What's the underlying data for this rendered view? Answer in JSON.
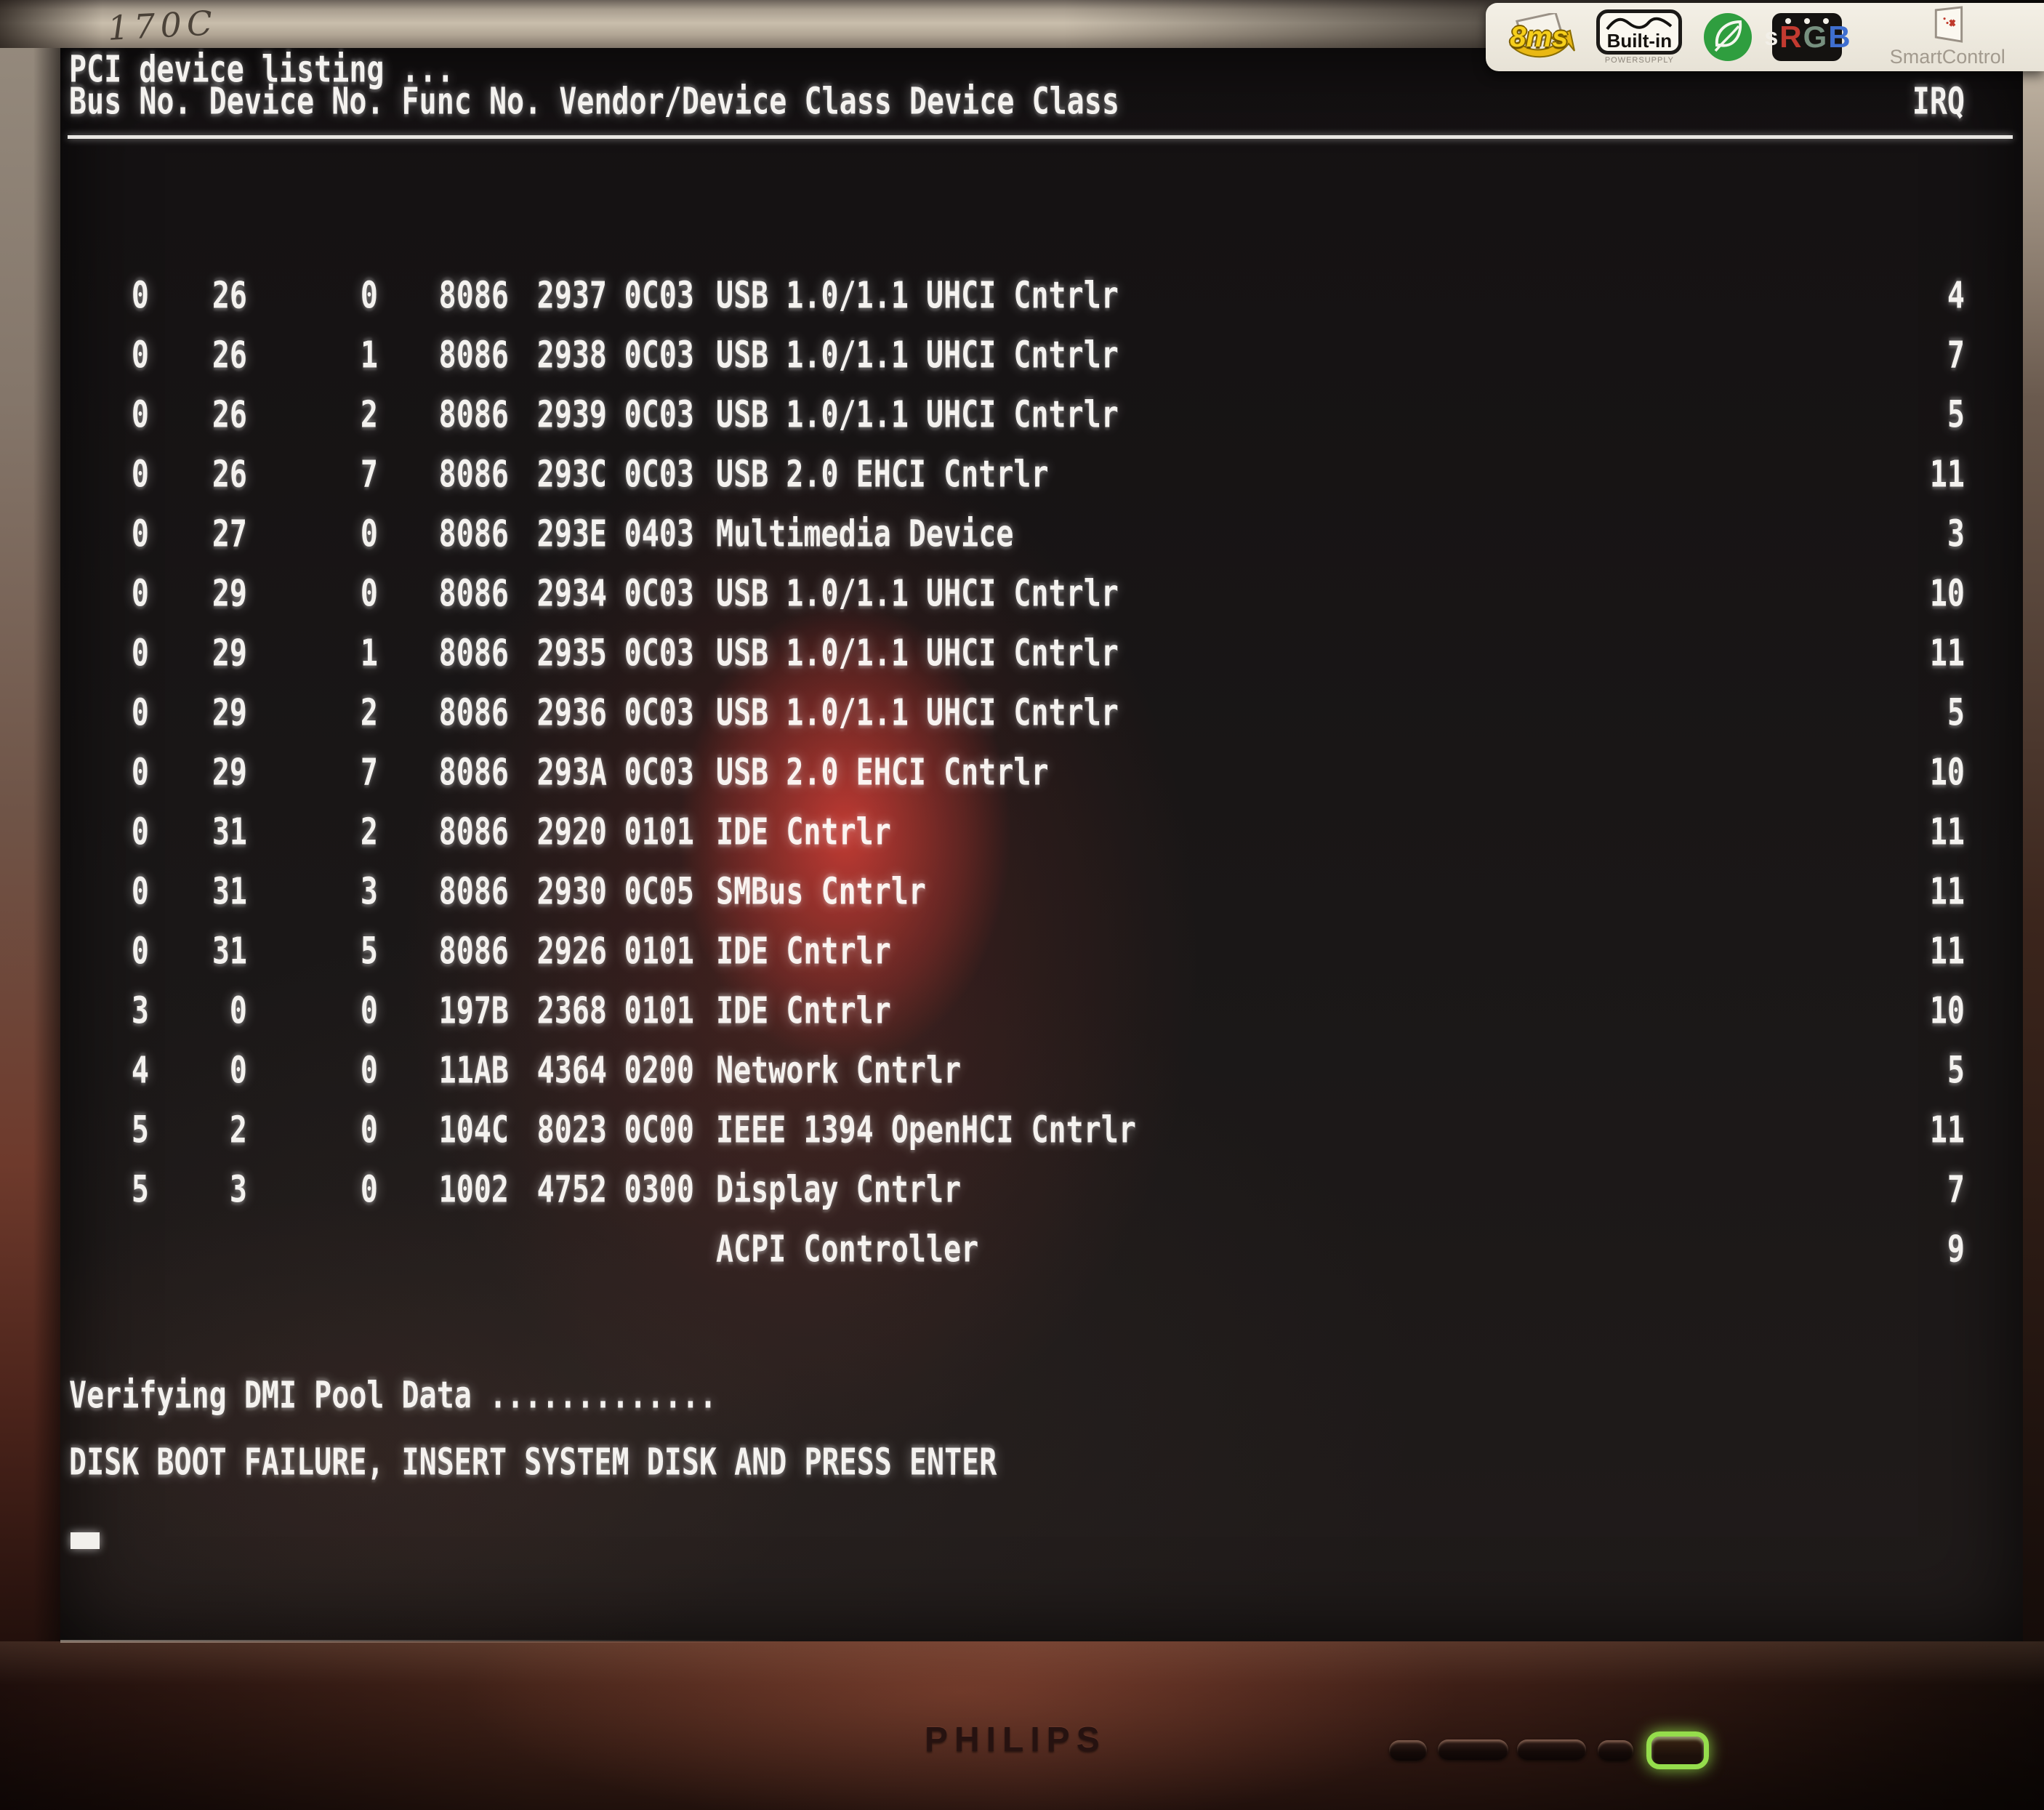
{
  "monitor": {
    "model_label": "170C",
    "brand_logo": "PHILIPS",
    "power_led_color": "#95dd4c",
    "sticker_badges": {
      "response_time": "8ms",
      "builtin_label": "Built-in",
      "builtin_sub": "POWERSUPPLY",
      "srgb_letters": [
        "s",
        "R",
        "G",
        "B"
      ],
      "smartcontrol": "SmartControl"
    }
  },
  "screen": {
    "title": "PCI device listing ...",
    "header_left": "Bus No. Device No. Func No. Vendor/Device Class Device Class",
    "header_irq": "IRQ",
    "text_color": "#f4f2ef",
    "glow_color": "#c22f23",
    "row_fields": [
      "bus",
      "device",
      "func",
      "vendor",
      "device_id",
      "class_code",
      "name",
      "irq"
    ],
    "rows": [
      {
        "bus": "0",
        "device": "26",
        "func": "0",
        "vendor": "8086",
        "device_id": "2937",
        "class_code": "0C03",
        "name": "USB 1.0/1.1 UHCI Cntrlr",
        "irq": "4"
      },
      {
        "bus": "0",
        "device": "26",
        "func": "1",
        "vendor": "8086",
        "device_id": "2938",
        "class_code": "0C03",
        "name": "USB 1.0/1.1 UHCI Cntrlr",
        "irq": "7"
      },
      {
        "bus": "0",
        "device": "26",
        "func": "2",
        "vendor": "8086",
        "device_id": "2939",
        "class_code": "0C03",
        "name": "USB 1.0/1.1 UHCI Cntrlr",
        "irq": "5"
      },
      {
        "bus": "0",
        "device": "26",
        "func": "7",
        "vendor": "8086",
        "device_id": "293C",
        "class_code": "0C03",
        "name": "USB 2.0 EHCI Cntrlr",
        "irq": "11"
      },
      {
        "bus": "0",
        "device": "27",
        "func": "0",
        "vendor": "8086",
        "device_id": "293E",
        "class_code": "0403",
        "name": "Multimedia Device",
        "irq": "3"
      },
      {
        "bus": "0",
        "device": "29",
        "func": "0",
        "vendor": "8086",
        "device_id": "2934",
        "class_code": "0C03",
        "name": "USB 1.0/1.1 UHCI Cntrlr",
        "irq": "10"
      },
      {
        "bus": "0",
        "device": "29",
        "func": "1",
        "vendor": "8086",
        "device_id": "2935",
        "class_code": "0C03",
        "name": "USB 1.0/1.1 UHCI Cntrlr",
        "irq": "11"
      },
      {
        "bus": "0",
        "device": "29",
        "func": "2",
        "vendor": "8086",
        "device_id": "2936",
        "class_code": "0C03",
        "name": "USB 1.0/1.1 UHCI Cntrlr",
        "irq": "5"
      },
      {
        "bus": "0",
        "device": "29",
        "func": "7",
        "vendor": "8086",
        "device_id": "293A",
        "class_code": "0C03",
        "name": "USB 2.0 EHCI Cntrlr",
        "irq": "10"
      },
      {
        "bus": "0",
        "device": "31",
        "func": "2",
        "vendor": "8086",
        "device_id": "2920",
        "class_code": "0101",
        "name": "IDE Cntrlr",
        "irq": "11"
      },
      {
        "bus": "0",
        "device": "31",
        "func": "3",
        "vendor": "8086",
        "device_id": "2930",
        "class_code": "0C05",
        "name": "SMBus Cntrlr",
        "irq": "11"
      },
      {
        "bus": "0",
        "device": "31",
        "func": "5",
        "vendor": "8086",
        "device_id": "2926",
        "class_code": "0101",
        "name": "IDE Cntrlr",
        "irq": "11"
      },
      {
        "bus": "3",
        "device": "0",
        "func": "0",
        "vendor": "197B",
        "device_id": "2368",
        "class_code": "0101",
        "name": "IDE Cntrlr",
        "irq": "10"
      },
      {
        "bus": "4",
        "device": "0",
        "func": "0",
        "vendor": "11AB",
        "device_id": "4364",
        "class_code": "0200",
        "name": "Network Cntrlr",
        "irq": "5"
      },
      {
        "bus": "5",
        "device": "2",
        "func": "0",
        "vendor": "104C",
        "device_id": "8023",
        "class_code": "0C00",
        "name": "IEEE 1394 OpenHCI Cntrlr",
        "irq": "11"
      },
      {
        "bus": "5",
        "device": "3",
        "func": "0",
        "vendor": "1002",
        "device_id": "4752",
        "class_code": "0300",
        "name": "Display Cntrlr",
        "irq": "7"
      },
      {
        "bus": "",
        "device": "",
        "func": "",
        "vendor": "",
        "device_id": "",
        "class_code": "",
        "name": "ACPI Controller",
        "irq": "9"
      }
    ],
    "message_verify": "Verifying DMI Pool Data .............",
    "message_error": "DISK BOOT FAILURE, INSERT SYSTEM DISK AND PRESS ENTER"
  }
}
